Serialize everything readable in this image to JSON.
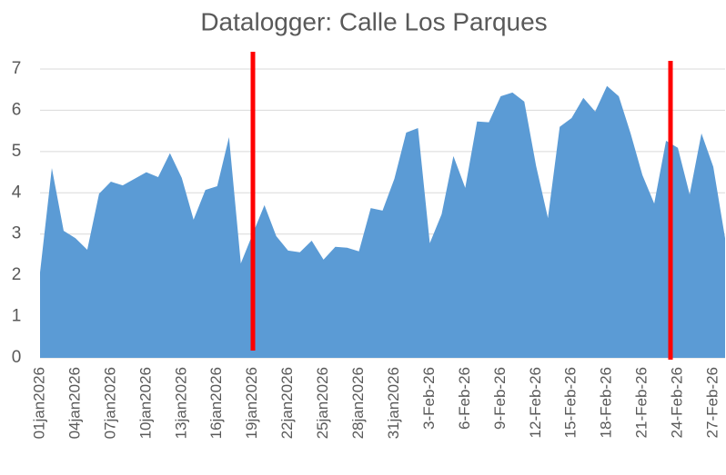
{
  "chart_data": {
    "type": "area",
    "title": "Datalogger: Calle Los Parques",
    "categories": [
      "01jan2026",
      null,
      null,
      "04jan2026",
      null,
      null,
      "07jan2026",
      null,
      null,
      "10jan2026",
      null,
      null,
      "13jan2026",
      null,
      null,
      "16jan2026",
      null,
      null,
      "19jan2026",
      null,
      null,
      "22jan2026",
      null,
      null,
      "25jan2026",
      null,
      null,
      "28jan2026",
      null,
      null,
      "31jan2026",
      null,
      null,
      "3-Feb-26",
      null,
      null,
      "6-Feb-26",
      null,
      null,
      "9-Feb-26",
      null,
      null,
      "12-Feb-26",
      null,
      null,
      "15-Feb-26",
      null,
      null,
      "18-Feb-26",
      null,
      null,
      "21-Feb-26",
      null,
      null,
      "24-Feb-26",
      null,
      null,
      "27-Feb-26",
      null
    ],
    "values": [
      2.07,
      4.6,
      3.08,
      2.9,
      2.62,
      3.98,
      4.27,
      4.18,
      4.34,
      4.5,
      4.38,
      4.96,
      4.36,
      3.35,
      4.07,
      4.16,
      5.35,
      2.29,
      3.0,
      3.7,
      2.95,
      2.6,
      2.56,
      2.84,
      2.38,
      2.69,
      2.67,
      2.58,
      3.63,
      3.57,
      4.34,
      5.46,
      5.57,
      2.78,
      3.48,
      4.89,
      4.12,
      5.73,
      5.71,
      6.34,
      6.43,
      6.21,
      4.65,
      3.39,
      5.6,
      5.81,
      6.3,
      5.97,
      6.59,
      6.34,
      5.44,
      4.43,
      3.74,
      5.26,
      5.09,
      3.96,
      5.44,
      4.63,
      2.9
    ],
    "color": "#5b9bd5",
    "ylim": [
      0,
      7
    ],
    "yticks": [
      0,
      1,
      2,
      3,
      4,
      5,
      6,
      7
    ],
    "grid": true
  }
}
